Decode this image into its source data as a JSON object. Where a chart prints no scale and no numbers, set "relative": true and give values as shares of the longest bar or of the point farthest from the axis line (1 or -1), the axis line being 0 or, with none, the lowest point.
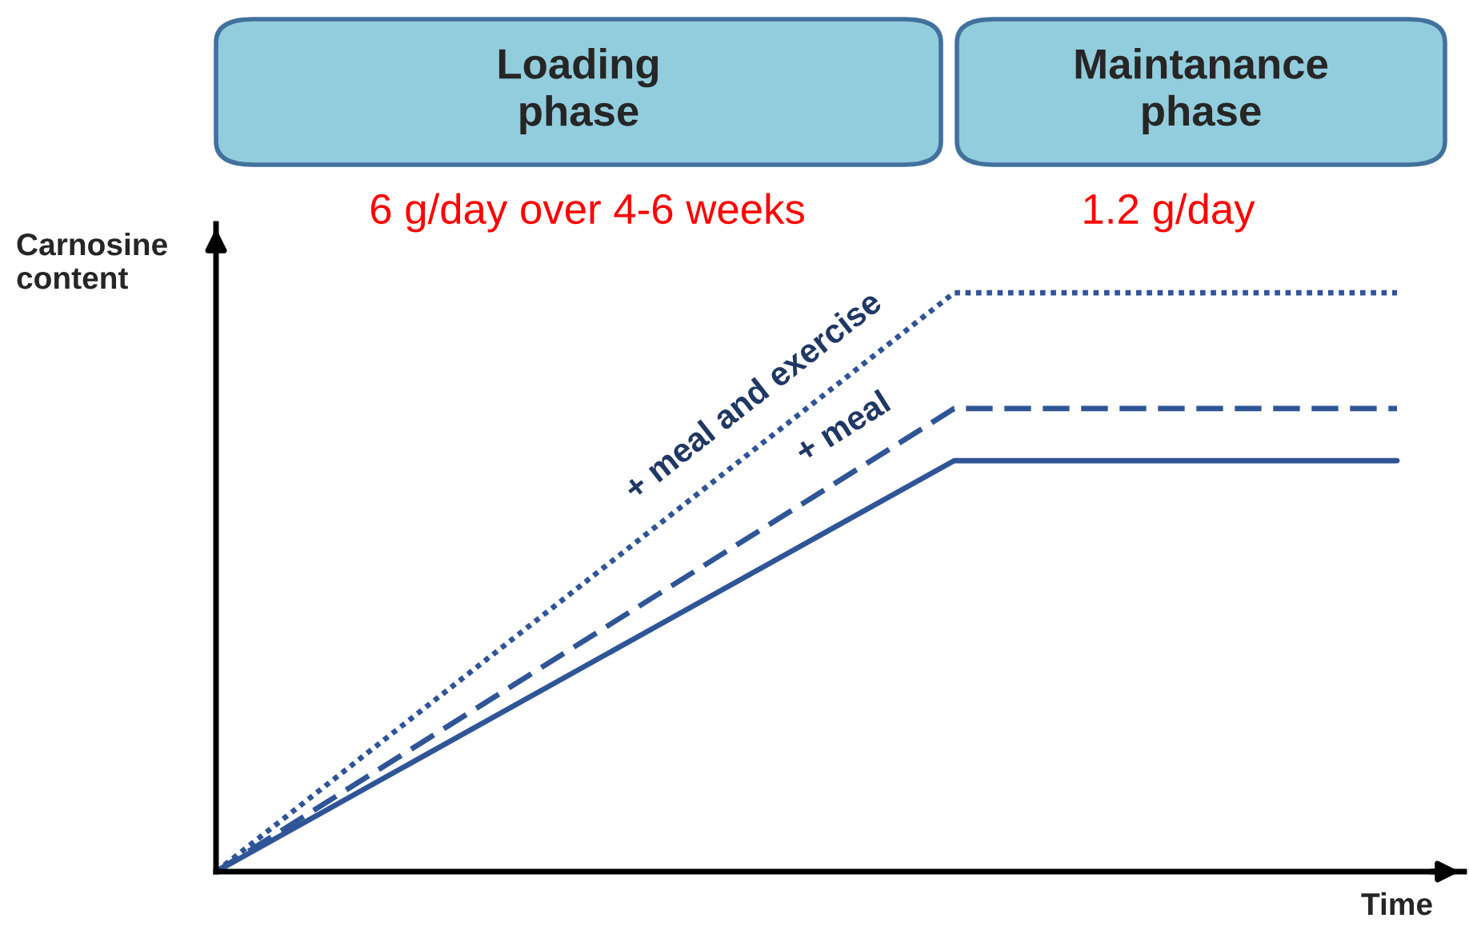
{
  "chart_data": {
    "type": "line",
    "relative": true,
    "xlabel": "Time",
    "ylabel": "Carnosine\ncontent",
    "categories": [
      null,
      null,
      null,
      null,
      null,
      null,
      null,
      null,
      null
    ],
    "series": [
      {
        "name": "+ meal and exercise",
        "color": "#2f5597",
        "line_style": "dotted",
        "values": [
          0,
          0.2,
          0.4,
          0.6,
          0.8,
          1,
          1,
          1,
          1
        ]
      },
      {
        "name": "+ meal",
        "color": "#2f5597",
        "line_style": "dashed",
        "values": [
          0,
          0.16,
          0.32,
          0.48,
          0.64,
          0.8,
          0.8,
          0.8,
          0.8
        ]
      },
      {
        "color": "#2f5597",
        "line_style": "solid",
        "values": [
          0,
          0.142,
          0.284,
          0.426,
          0.568,
          0.71,
          0.71,
          0.71,
          0.71
        ]
      }
    ],
    "annotations": [
      "Loading\nphase",
      "Maintanance\nphase",
      "6 g/day over 4-6 weeks",
      "1.2 g/day"
    ],
    "legend": false
  }
}
